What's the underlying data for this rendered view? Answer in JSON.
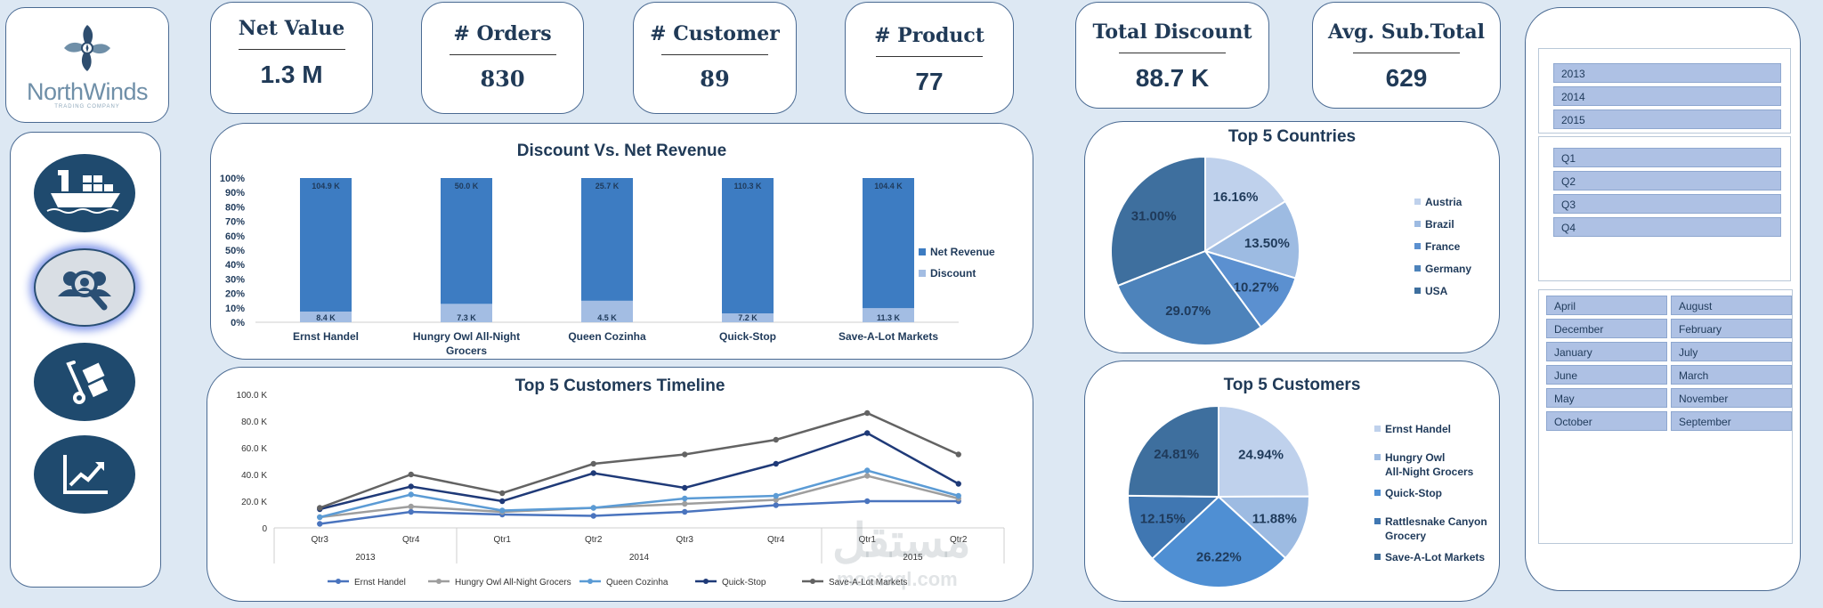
{
  "logo": {
    "name": "NorthWinds",
    "sub": "TRADING COMPANY"
  },
  "kpis": [
    {
      "title": "Net Value",
      "value": "1.3 M"
    },
    {
      "title": "# Orders",
      "value": "830"
    },
    {
      "title": "# Customer",
      "value": "89"
    },
    {
      "title": "# Product",
      "value": "77"
    },
    {
      "title": "Total Discount",
      "value": "88.7 K"
    },
    {
      "title": "Avg. Sub.Total",
      "value": "629"
    }
  ],
  "nav": [
    "ship-icon",
    "customers-search-icon",
    "hand-truck-icon",
    "trend-chart-icon"
  ],
  "charts": {
    "discount_vs_revenue": {
      "title": "Discount Vs. Net Revenue",
      "legend": [
        "Net Revenue",
        "Discount"
      ],
      "colors": {
        "revenue": "#3d7cc2",
        "discount": "#a3bde3"
      }
    },
    "timeline": {
      "title": "Top 5 Customers Timeline",
      "colors": [
        "#4a74be",
        "#9e9e9e",
        "#5b9bd5",
        "#1f3a78",
        "#636363"
      ]
    },
    "countries": {
      "title": "Top 5 Countries",
      "colors": [
        "#bfd1ec",
        "#9dbbe2",
        "#5b90d0",
        "#4d83bb",
        "#3e6f9e"
      ]
    },
    "customers": {
      "title": "Top 5 Customers",
      "colors": [
        "#bfd1ec",
        "#9dbbe2",
        "#4f8fd3",
        "#4077b2",
        "#3e6f9e"
      ]
    }
  },
  "chart_data": [
    {
      "type": "bar",
      "title": "Discount Vs. Net Revenue",
      "stacked": "percent",
      "categories": [
        "Ernst Handel",
        "Hungry Owl All-Night Grocers",
        "Queen Cozinha",
        "Quick-Stop",
        "Save-A-Lot Markets"
      ],
      "series": [
        {
          "name": "Net Revenue",
          "values": [
            104.9,
            50.0,
            25.7,
            110.3,
            104.4
          ],
          "labels": [
            "104.9 K",
            "50.0 K",
            "25.7 K",
            "110.3 K",
            "104.4 K"
          ]
        },
        {
          "name": "Discount",
          "values": [
            8.4,
            7.3,
            4.5,
            7.2,
            11.3
          ],
          "labels": [
            "8.4 K",
            "7.3 K",
            "4.5 K",
            "7.2 K",
            "11.3 K"
          ]
        }
      ],
      "yticks": [
        "0%",
        "10%",
        "20%",
        "30%",
        "40%",
        "50%",
        "60%",
        "70%",
        "80%",
        "90%",
        "100%"
      ],
      "ylim": [
        0,
        100
      ],
      "legend": "right"
    },
    {
      "type": "line",
      "title": "Top 5 Customers Timeline",
      "x": [
        "Qtr3",
        "Qtr4",
        "Qtr1",
        "Qtr2",
        "Qtr3",
        "Qtr4",
        "Qtr1",
        "Qtr2"
      ],
      "year_groups": [
        {
          "label": "2013",
          "span": 2
        },
        {
          "label": "2014",
          "span": 4
        },
        {
          "label": "2015",
          "span": 2
        }
      ],
      "yticks": [
        "0",
        "20.0 K",
        "40.0 K",
        "60.0 K",
        "80.0 K",
        "100.0 K"
      ],
      "ylim": [
        0,
        100
      ],
      "series": [
        {
          "name": "Ernst Handel",
          "values": [
            3,
            12,
            10,
            9,
            12,
            17,
            20,
            20
          ]
        },
        {
          "name": "Hungry Owl All-Night Grocers",
          "values": [
            8,
            16,
            12,
            15,
            18,
            21,
            39,
            22
          ]
        },
        {
          "name": "Queen Cozinha",
          "values": [
            8,
            25,
            13,
            15,
            22,
            24,
            43,
            24
          ]
        },
        {
          "name": "Quick-Stop",
          "values": [
            14,
            31,
            20,
            41,
            30,
            48,
            71,
            33
          ]
        },
        {
          "name": "Save-A-Lot Markets",
          "values": [
            15,
            40,
            26,
            48,
            55,
            66,
            86,
            55
          ]
        }
      ],
      "legend": "bottom"
    },
    {
      "type": "pie",
      "title": "Top 5 Countries",
      "labels": [
        "Austria",
        "Brazil",
        "France",
        "Germany",
        "USA"
      ],
      "values": [
        16.16,
        13.5,
        10.27,
        29.07,
        31.0
      ],
      "value_labels": [
        "16.16%",
        "13.50%",
        "10.27%",
        "29.07%",
        "31.00%"
      ],
      "legend": "right"
    },
    {
      "type": "pie",
      "title": "Top 5 Customers",
      "labels": [
        "Ernst Handel",
        "Hungry Owl All-Night Grocers",
        "Quick-Stop",
        "Rattlesnake Canyon Grocery",
        "Save-A-Lot Markets"
      ],
      "values": [
        24.94,
        11.88,
        26.22,
        12.15,
        24.81
      ],
      "value_labels": [
        "24.94%",
        "11.88%",
        "26.22%",
        "12.15%",
        "24.81%"
      ],
      "legend": "right"
    }
  ],
  "slicers": {
    "years": [
      "2013",
      "2014",
      "2015"
    ],
    "quarters": [
      "Q1",
      "Q2",
      "Q3",
      "Q4"
    ],
    "months": [
      "April",
      "August",
      "December",
      "February",
      "January",
      "July",
      "June",
      "March",
      "May",
      "November",
      "October",
      "September"
    ]
  },
  "watermark": {
    "arabic": "مستقل",
    "latin": "mostaql.com"
  }
}
